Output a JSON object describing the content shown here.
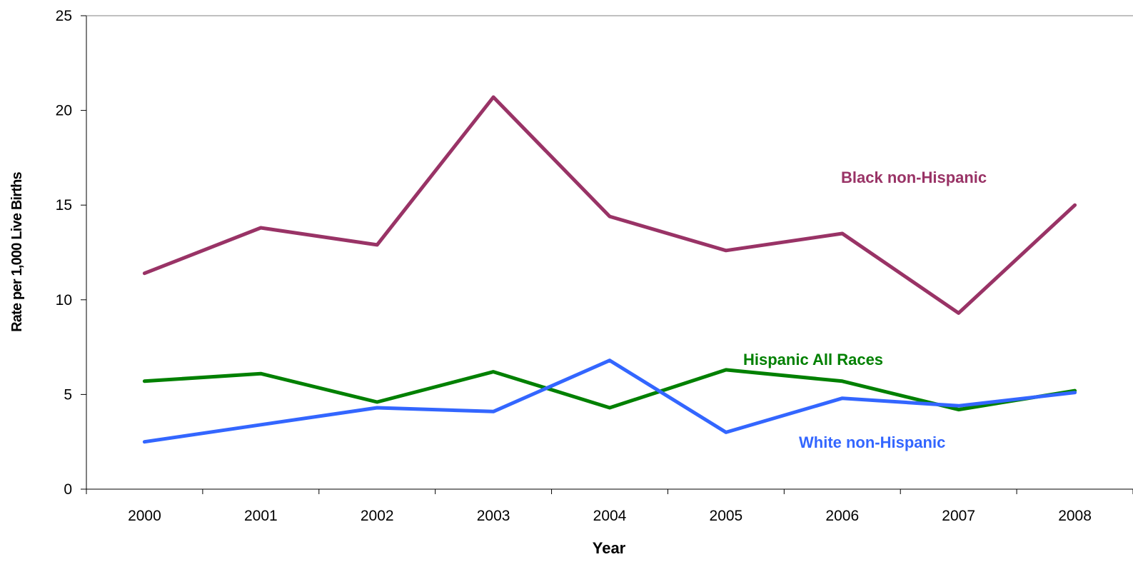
{
  "chart_data": {
    "type": "line",
    "title": "",
    "xlabel": "Year",
    "ylabel": "Rate per 1,000 Live Births",
    "categories": [
      "2000",
      "2001",
      "2002",
      "2003",
      "2004",
      "2005",
      "2006",
      "2007",
      "2008"
    ],
    "ylim": [
      0,
      25
    ],
    "yticks": [
      0,
      5,
      10,
      15,
      20,
      25
    ],
    "grid": false,
    "legend": "inline labels",
    "series": [
      {
        "name": "Black non-Hispanic",
        "color": "#993366",
        "values": [
          11.4,
          13.8,
          12.9,
          20.7,
          14.4,
          12.6,
          13.5,
          9.3,
          15.0
        ]
      },
      {
        "name": "Hispanic All Races",
        "color": "#008000",
        "values": [
          5.7,
          6.1,
          4.6,
          6.2,
          4.3,
          6.3,
          5.7,
          4.2,
          5.2
        ]
      },
      {
        "name": "White non-Hispanic",
        "color": "#3366FF",
        "values": [
          2.5,
          3.4,
          4.3,
          4.1,
          6.8,
          3.0,
          4.8,
          4.4,
          5.1
        ]
      }
    ]
  }
}
